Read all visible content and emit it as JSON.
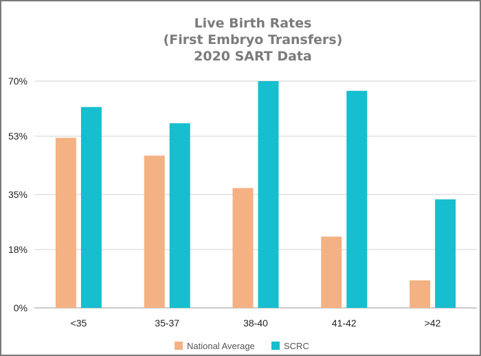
{
  "chart_data": {
    "type": "bar",
    "title": [
      "Live Birth Rates",
      "(First Embryo Transfers)",
      "2020 SART Data"
    ],
    "xlabel": "",
    "ylabel": "",
    "categories": [
      "<35",
      "35-37",
      "38-40",
      "41-42",
      ">42"
    ],
    "series": [
      {
        "name": "National Average",
        "color": "#f4b183",
        "values": [
          52.5,
          47,
          37,
          22,
          8.5
        ]
      },
      {
        "name": "SCRC",
        "color": "#17becf",
        "values": [
          62,
          57,
          70,
          67,
          33.5
        ]
      }
    ],
    "yticks": [
      0,
      18,
      35,
      53,
      70
    ],
    "ytick_labels": [
      "0%",
      "18%",
      "35%",
      "53%",
      "70%"
    ],
    "ylim": [
      0,
      70
    ],
    "grid": true,
    "legend_position": "bottom"
  }
}
